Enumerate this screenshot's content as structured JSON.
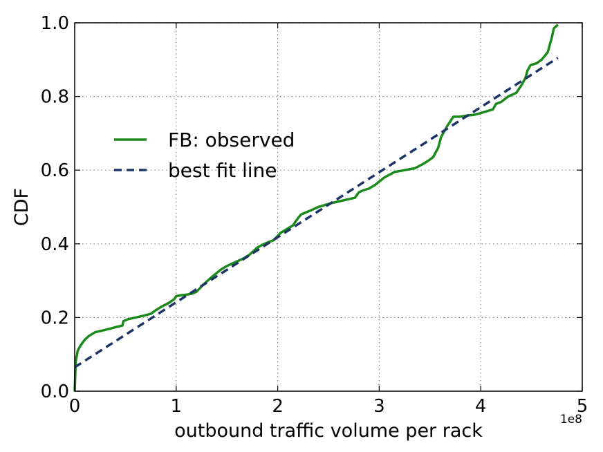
{
  "chart_data": {
    "type": "line",
    "xlabel": "outbound traffic volume per rack",
    "ylabel": "CDF",
    "x_offset_label": "1e8",
    "xlim": [
      0,
      5
    ],
    "ylim": [
      0,
      1.0
    ],
    "x_ticks": [
      0,
      1,
      2,
      3,
      4,
      5
    ],
    "x_tick_labels": [
      "0",
      "1",
      "2",
      "3",
      "4",
      "5"
    ],
    "y_ticks": [
      0,
      0.2,
      0.4,
      0.6,
      0.8,
      1.0
    ],
    "y_tick_labels": [
      "0.0",
      "0.2",
      "0.4",
      "0.6",
      "0.8",
      "1.0"
    ],
    "grid": true,
    "legend_position": "upper-left",
    "series": [
      {
        "name": "FB: observed",
        "color": "#1a8a1a",
        "style": "solid",
        "x": [
          0,
          0.01,
          0.03,
          0.06,
          0.1,
          0.14,
          0.2,
          0.28,
          0.35,
          0.42,
          0.47,
          0.48,
          0.52,
          0.6,
          0.68,
          0.75,
          0.8,
          0.86,
          0.93,
          0.98,
          1.0,
          1.04,
          1.1,
          1.16,
          1.2,
          1.27,
          1.35,
          1.44,
          1.5,
          1.58,
          1.66,
          1.72,
          1.8,
          1.87,
          1.96,
          2.03,
          2.09,
          2.15,
          2.2,
          2.23,
          2.32,
          2.4,
          2.46,
          2.52,
          2.6,
          2.68,
          2.76,
          2.8,
          2.84,
          2.9,
          2.96,
          3.05,
          3.15,
          3.25,
          3.35,
          3.42,
          3.48,
          3.53,
          3.58,
          3.61,
          3.63,
          3.67,
          3.73,
          3.79,
          3.86,
          3.93,
          4.0,
          4.06,
          4.12,
          4.15,
          4.2,
          4.27,
          4.35,
          4.4,
          4.44,
          4.46,
          4.49,
          4.55,
          4.6,
          4.63,
          4.66,
          4.68,
          4.7,
          4.72,
          4.76
        ],
        "y": [
          0.0,
          0.08,
          0.11,
          0.125,
          0.14,
          0.15,
          0.16,
          0.165,
          0.17,
          0.175,
          0.178,
          0.19,
          0.195,
          0.2,
          0.205,
          0.21,
          0.22,
          0.23,
          0.24,
          0.25,
          0.258,
          0.26,
          0.262,
          0.265,
          0.27,
          0.29,
          0.31,
          0.33,
          0.34,
          0.35,
          0.36,
          0.37,
          0.39,
          0.4,
          0.41,
          0.43,
          0.44,
          0.45,
          0.47,
          0.48,
          0.49,
          0.5,
          0.505,
          0.51,
          0.515,
          0.52,
          0.525,
          0.54,
          0.545,
          0.55,
          0.56,
          0.58,
          0.595,
          0.6,
          0.605,
          0.615,
          0.625,
          0.635,
          0.66,
          0.69,
          0.7,
          0.72,
          0.745,
          0.745,
          0.748,
          0.75,
          0.755,
          0.76,
          0.765,
          0.78,
          0.785,
          0.8,
          0.81,
          0.83,
          0.85,
          0.87,
          0.885,
          0.89,
          0.9,
          0.91,
          0.92,
          0.94,
          0.96,
          0.985,
          0.995
        ]
      },
      {
        "name": "best fit line",
        "color": "#1c3566",
        "style": "dashed",
        "x": [
          0,
          4.76
        ],
        "y": [
          0.065,
          0.905
        ]
      }
    ]
  }
}
